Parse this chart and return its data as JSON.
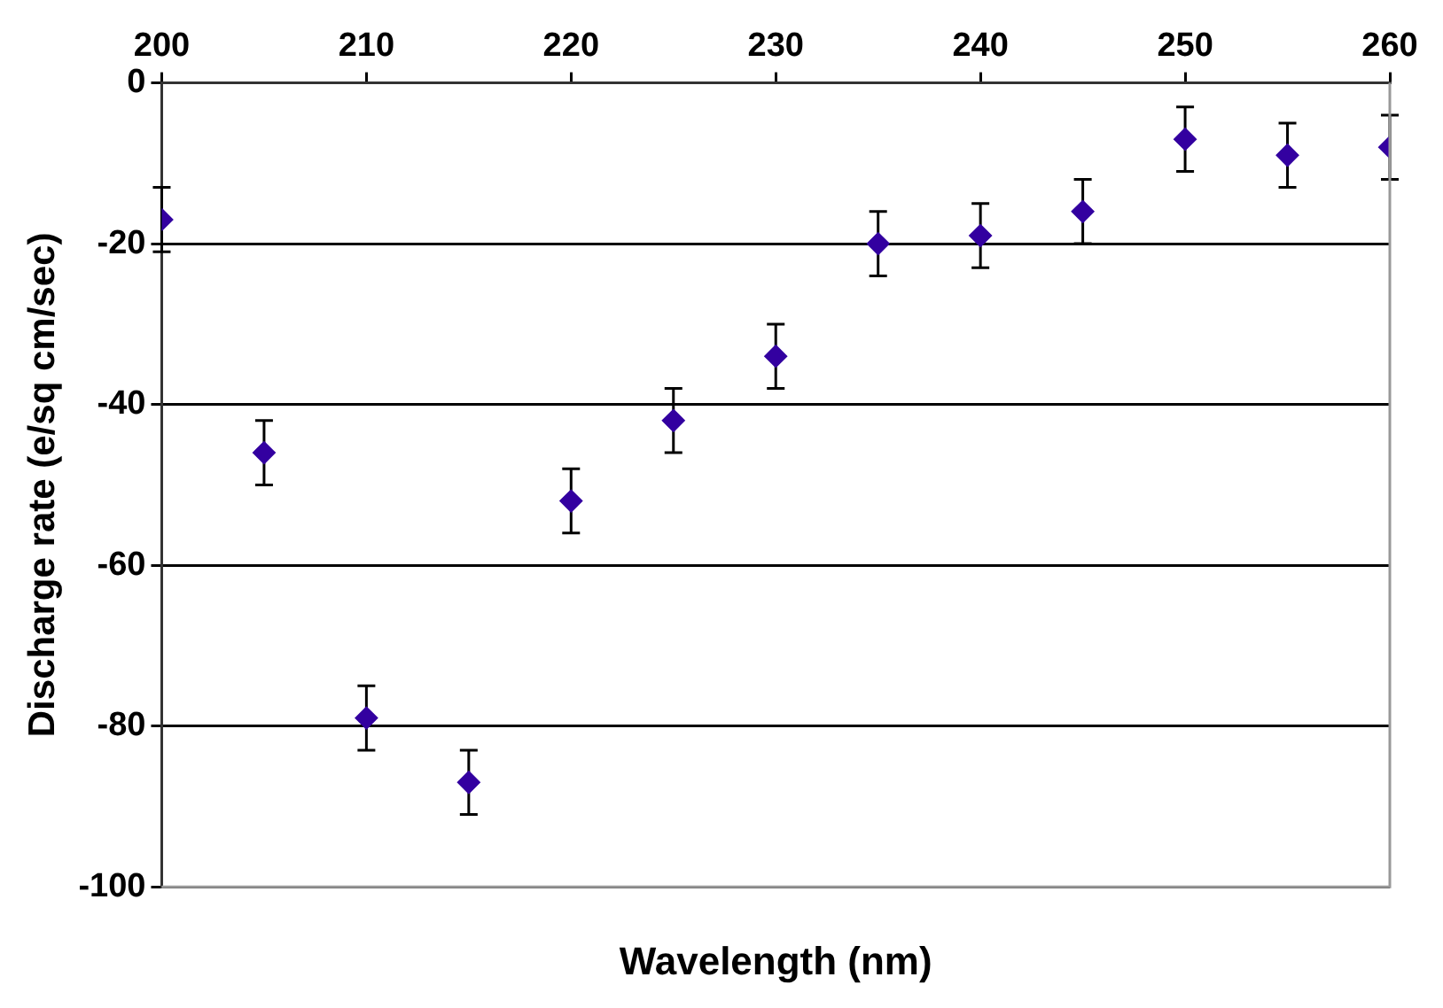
{
  "chart_data": {
    "type": "scatter",
    "xlabel": "Wavelength (nm)",
    "ylabel": "Discharge rate (e/sq cm/sec)",
    "x": [
      200,
      205,
      210,
      215,
      220,
      225,
      230,
      235,
      240,
      245,
      250,
      255,
      260
    ],
    "series": [
      {
        "color": "#3300a0",
        "values": [
          -17,
          -46,
          -79,
          -87,
          -52,
          -42,
          -34,
          -20,
          -19,
          -16,
          -7,
          -9,
          -8
        ],
        "errors": [
          4,
          4,
          4,
          4,
          4,
          4,
          4,
          4,
          4,
          4,
          4,
          4,
          4
        ]
      }
    ],
    "xlim": [
      200,
      260
    ],
    "xticks": [
      200,
      210,
      220,
      230,
      240,
      250,
      260
    ],
    "ylim": [
      -100,
      0
    ],
    "yticks": [
      -100,
      -80,
      -60,
      -40,
      -20,
      0
    ],
    "grid": "y",
    "marker": "diamond",
    "legend": false
  }
}
